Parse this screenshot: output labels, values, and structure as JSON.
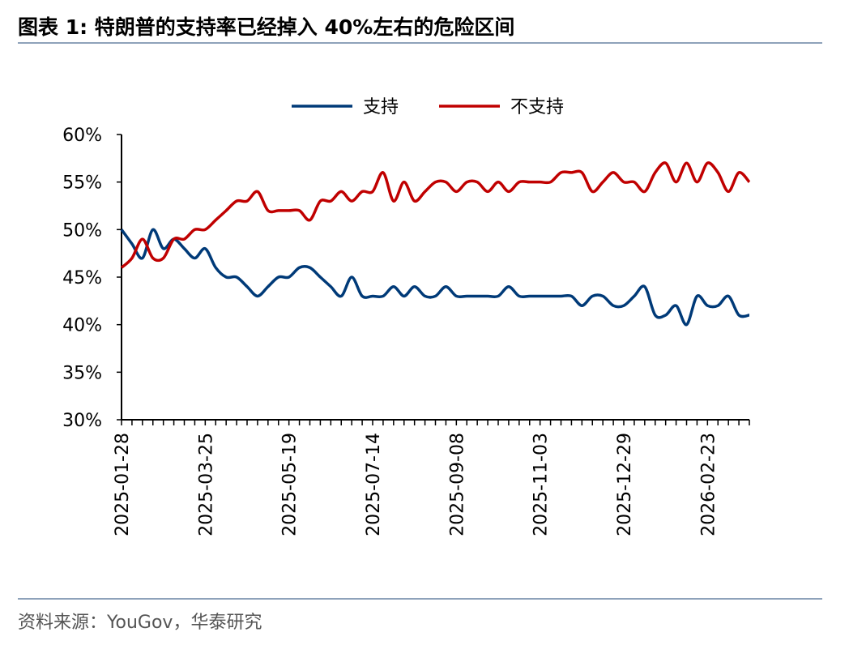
{
  "header": {
    "title": "图表 1:   特朗普的支持率已经掉入 40%左右的危险区间"
  },
  "chart_data": {
    "type": "line",
    "categories": [
      "2025-01-28",
      null,
      null,
      null,
      null,
      null,
      null,
      null,
      "2025-03-25",
      null,
      null,
      null,
      null,
      null,
      null,
      null,
      "2025-05-19",
      null,
      null,
      null,
      null,
      null,
      null,
      null,
      "2025-07-14",
      null,
      null,
      null,
      null,
      null,
      null,
      null,
      "2025-09-08",
      null,
      null,
      null,
      null,
      null,
      null,
      null,
      "2025-11-03",
      null,
      null,
      null,
      null,
      null,
      null,
      null,
      "2025-12-29",
      null,
      null,
      null,
      null,
      null,
      null,
      null,
      "2026-02-23",
      null,
      null,
      null,
      null
    ],
    "series": [
      {
        "name": "支持",
        "color": "#003a78",
        "values": [
          50,
          48.5,
          47,
          50,
          48,
          49,
          48,
          47,
          48,
          46,
          45,
          45,
          44,
          43,
          44,
          45,
          45,
          46,
          46,
          45,
          44,
          43,
          45,
          43,
          43,
          43,
          44,
          43,
          44,
          43,
          43,
          44,
          43,
          43,
          43,
          43,
          43,
          44,
          43,
          43,
          43,
          43,
          43,
          43,
          42,
          43,
          43,
          42,
          42,
          43,
          44,
          41,
          41,
          42,
          40,
          43,
          42,
          42,
          43,
          41,
          41
        ]
      },
      {
        "name": "不支持",
        "color": "#c00000",
        "values": [
          46,
          47,
          49,
          47,
          47,
          49,
          49,
          50,
          50,
          51,
          52,
          53,
          53,
          54,
          52,
          52,
          52,
          52,
          51,
          53,
          53,
          54,
          53,
          54,
          54,
          56,
          53,
          55,
          53,
          54,
          55,
          55,
          54,
          55,
          55,
          54,
          55,
          54,
          55,
          55,
          55,
          55,
          56,
          56,
          56,
          54,
          55,
          56,
          55,
          55,
          54,
          56,
          57,
          55,
          57,
          55,
          57,
          56,
          54,
          56,
          55
        ]
      }
    ],
    "ylim": [
      30,
      60
    ],
    "yticks": [
      {
        "value": 30,
        "label": "30%"
      },
      {
        "value": 35,
        "label": "35%"
      },
      {
        "value": 40,
        "label": "40%"
      },
      {
        "value": 45,
        "label": "45%"
      },
      {
        "value": 50,
        "label": "50%"
      },
      {
        "value": 55,
        "label": "55%"
      },
      {
        "value": 60,
        "label": "60%"
      }
    ],
    "legend": "top"
  },
  "footer": {
    "source": "资料来源：YouGov，华泰研究"
  }
}
